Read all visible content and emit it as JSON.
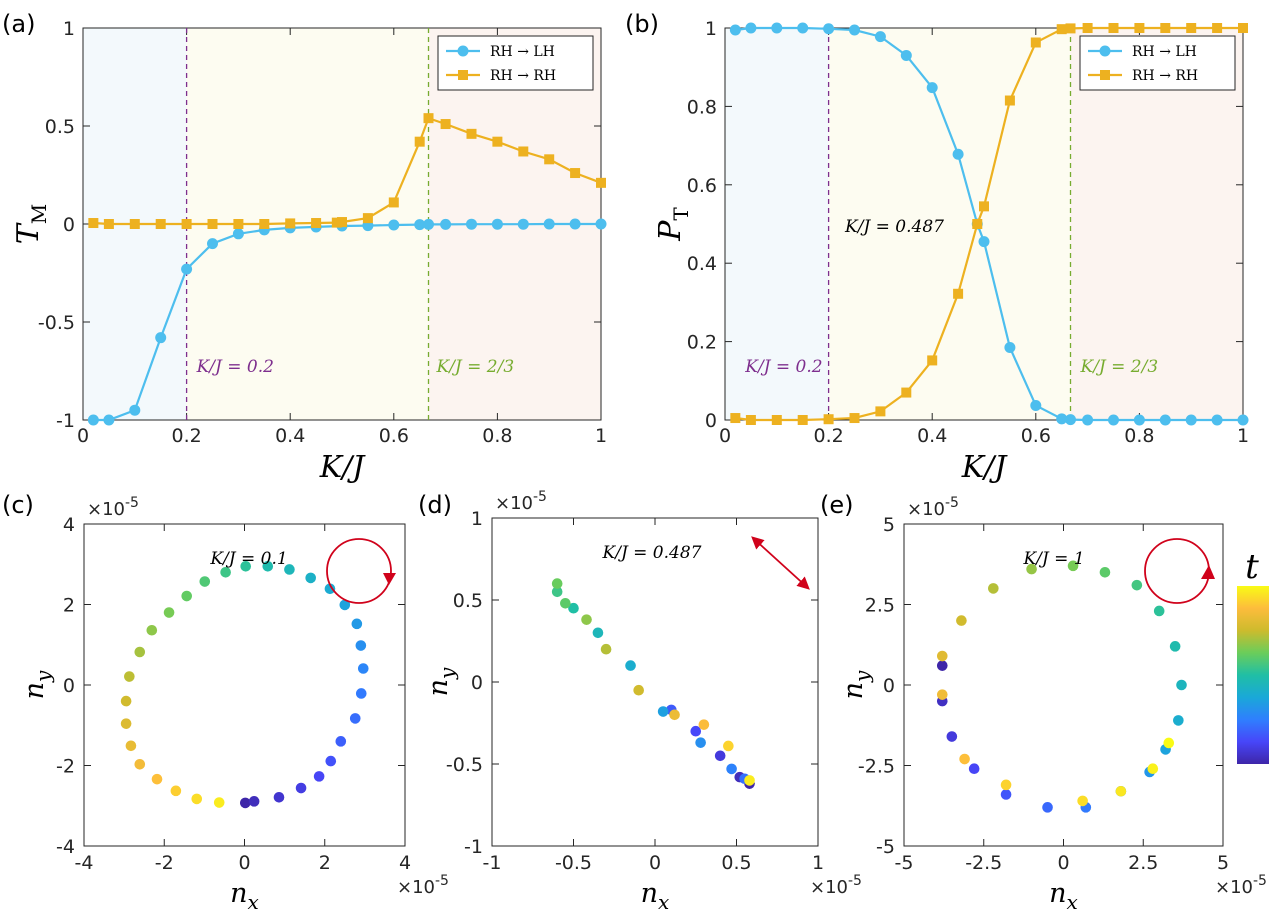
{
  "chart_data": [
    {
      "id": "a",
      "panel_label": "(a)",
      "type": "line",
      "xlabel": "K/J",
      "ylabel_main": "T",
      "ylabel_sub": "M",
      "xlim": [
        0,
        1
      ],
      "ylim": [
        -1,
        1
      ],
      "xticks": [
        0,
        0.2,
        0.4,
        0.6,
        0.8,
        1
      ],
      "xtick_labels": [
        "0",
        "0.2",
        "0.4",
        "0.6",
        "0.8",
        "1"
      ],
      "yticks": [
        -1,
        -0.5,
        0,
        0.5,
        1
      ],
      "ytick_labels": [
        "-1",
        "-0.5",
        "0",
        "0.5",
        "1"
      ],
      "regions": [
        {
          "from": 0,
          "to": 0.2,
          "color": "#f3f9fc"
        },
        {
          "from": 0.2,
          "to": 0.667,
          "color": "#fdfcf1"
        },
        {
          "from": 0.667,
          "to": 1,
          "color": "#fcf4f0"
        }
      ],
      "vlines": [
        {
          "x": 0.2,
          "color": "#7e2f8e",
          "label": "K/J = 0.2"
        },
        {
          "x": 0.667,
          "color": "#77ac30",
          "label": "K/J = 2/3"
        }
      ],
      "legend": {
        "position": "top-right",
        "entries": [
          "RH → LH",
          "RH → RH"
        ]
      },
      "series": [
        {
          "name": "RH → LH",
          "color": "#4dbeee",
          "marker": "circle",
          "x": [
            0.02,
            0.05,
            0.1,
            0.15,
            0.2,
            0.25,
            0.3,
            0.35,
            0.4,
            0.45,
            0.5,
            0.55,
            0.6,
            0.65,
            0.667,
            0.7,
            0.75,
            0.8,
            0.85,
            0.9,
            0.95,
            1.0
          ],
          "y": [
            -1,
            -1,
            -0.95,
            -0.58,
            -0.23,
            -0.1,
            -0.05,
            -0.03,
            -0.02,
            -0.015,
            -0.01,
            -0.008,
            -0.005,
            -0.003,
            -0.002,
            -0.002,
            -0.001,
            -0.001,
            -0.001,
            0,
            0,
            0
          ]
        },
        {
          "name": "RH → RH",
          "color": "#edb120",
          "marker": "square",
          "x": [
            0.02,
            0.05,
            0.1,
            0.15,
            0.2,
            0.25,
            0.3,
            0.35,
            0.4,
            0.45,
            0.49,
            0.5,
            0.55,
            0.6,
            0.65,
            0.667,
            0.7,
            0.75,
            0.8,
            0.85,
            0.9,
            0.95,
            1.0
          ],
          "y": [
            0.005,
            0,
            0,
            0,
            0,
            0,
            0,
            0,
            0.003,
            0.005,
            0.007,
            0.01,
            0.03,
            0.11,
            0.42,
            0.54,
            0.51,
            0.46,
            0.42,
            0.37,
            0.33,
            0.26,
            0.21
          ]
        }
      ]
    },
    {
      "id": "b",
      "panel_label": "(b)",
      "type": "line",
      "xlabel": "K/J",
      "ylabel_main": "P",
      "ylabel_sub": "T",
      "xlim": [
        0,
        1
      ],
      "ylim": [
        0,
        1
      ],
      "xticks": [
        0,
        0.2,
        0.4,
        0.6,
        0.8,
        1
      ],
      "xtick_labels": [
        "0",
        "0.2",
        "0.4",
        "0.6",
        "0.8",
        "1"
      ],
      "yticks": [
        0,
        0.2,
        0.4,
        0.6,
        0.8,
        1
      ],
      "ytick_labels": [
        "0",
        "0.2",
        "0.4",
        "0.6",
        "0.8",
        "1"
      ],
      "regions": [
        {
          "from": 0,
          "to": 0.2,
          "color": "#f3f9fc"
        },
        {
          "from": 0.2,
          "to": 0.667,
          "color": "#fdfcf1"
        },
        {
          "from": 0.667,
          "to": 1,
          "color": "#fcf4f0"
        }
      ],
      "vlines": [
        {
          "x": 0.2,
          "color": "#7e2f8e",
          "label": "K/J = 0.2"
        },
        {
          "x": 0.667,
          "color": "#77ac30",
          "label": "K/J = 2/3"
        }
      ],
      "annotation": "K/J = 0.487",
      "legend": {
        "position": "top-right",
        "entries": [
          "RH → LH",
          "RH → RH"
        ]
      },
      "series": [
        {
          "name": "RH → LH",
          "color": "#4dbeee",
          "marker": "circle",
          "x": [
            0.02,
            0.05,
            0.1,
            0.15,
            0.2,
            0.25,
            0.3,
            0.35,
            0.4,
            0.45,
            0.487,
            0.5,
            0.55,
            0.6,
            0.65,
            0.667,
            0.7,
            0.75,
            0.8,
            0.85,
            0.9,
            0.95,
            1.0
          ],
          "y": [
            0.995,
            1,
            1,
            1,
            0.998,
            0.995,
            0.978,
            0.93,
            0.848,
            0.678,
            0.5,
            0.455,
            0.185,
            0.037,
            0.003,
            0.001,
            0,
            0,
            0,
            0,
            0,
            0,
            0
          ]
        },
        {
          "name": "RH → RH",
          "color": "#edb120",
          "marker": "square",
          "x": [
            0.02,
            0.05,
            0.1,
            0.15,
            0.2,
            0.25,
            0.3,
            0.35,
            0.4,
            0.45,
            0.487,
            0.5,
            0.55,
            0.6,
            0.65,
            0.667,
            0.7,
            0.75,
            0.8,
            0.85,
            0.9,
            0.95,
            1.0
          ],
          "y": [
            0.005,
            0,
            0,
            0,
            0.002,
            0.005,
            0.022,
            0.07,
            0.152,
            0.322,
            0.5,
            0.545,
            0.815,
            0.963,
            0.997,
            0.999,
            1,
            1,
            1,
            1,
            1,
            1,
            1
          ]
        }
      ]
    },
    {
      "id": "c",
      "panel_label": "(c)",
      "type": "scatter",
      "xlabel": "n",
      "xlabel_sub": "x",
      "ylabel": "n",
      "ylabel_sub": "y",
      "exponent_label": "×10",
      "exponent_power": "-5",
      "title": "K/J = 0.1",
      "polarization": "circular, clockwise",
      "xlim": [
        -4,
        4
      ],
      "ylim": [
        -4,
        4
      ],
      "xticks": [
        -4,
        -2,
        0,
        2,
        4
      ],
      "xtick_labels": [
        "-4",
        "-2",
        "0",
        "2",
        "4"
      ],
      "yticks": [
        -4,
        -2,
        0,
        2,
        4
      ],
      "ytick_labels": [
        "-4",
        "-2",
        "0",
        "2",
        "4"
      ],
      "colorbar_label": "t",
      "points": {
        "x": [
          0.02,
          0.24,
          0.86,
          1.41,
          1.86,
          2.15,
          2.4,
          2.76,
          2.91,
          2.96,
          2.9,
          2.8,
          2.5,
          2.13,
          1.65,
          1.12,
          0.58,
          0.03,
          -0.47,
          -0.99,
          -1.44,
          -1.88,
          -2.31,
          -2.61,
          -2.87,
          -2.95,
          -2.95,
          -2.83,
          -2.61,
          -2.18,
          -1.71,
          -1.19,
          -0.63
        ],
        "y": [
          -2.93,
          -2.89,
          -2.79,
          -2.56,
          -2.27,
          -1.89,
          -1.4,
          -0.83,
          -0.21,
          0.41,
          0.98,
          1.52,
          1.99,
          2.39,
          2.66,
          2.87,
          2.95,
          2.95,
          2.8,
          2.57,
          2.21,
          1.8,
          1.36,
          0.82,
          0.21,
          -0.4,
          -0.96,
          -1.51,
          -1.97,
          -2.34,
          -2.63,
          -2.83,
          -2.92
        ],
        "t": [
          0.0,
          0.03,
          0.06,
          0.09,
          0.12,
          0.15,
          0.18,
          0.21,
          0.24,
          0.27,
          0.3,
          0.33,
          0.36,
          0.39,
          0.42,
          0.45,
          0.48,
          0.52,
          0.55,
          0.58,
          0.61,
          0.64,
          0.67,
          0.7,
          0.73,
          0.76,
          0.79,
          0.82,
          0.85,
          0.88,
          0.91,
          0.94,
          0.97
        ]
      }
    },
    {
      "id": "d",
      "panel_label": "(d)",
      "type": "scatter",
      "xlabel": "n",
      "xlabel_sub": "x",
      "ylabel": "n",
      "ylabel_sub": "y",
      "exponent_label": "×10",
      "exponent_power": "-5",
      "title": "K/J = 0.487",
      "polarization": "linear",
      "xlim": [
        -1,
        1
      ],
      "ylim": [
        -1,
        1
      ],
      "xticks": [
        -1,
        -0.5,
        0,
        0.5,
        1
      ],
      "xtick_labels": [
        "-1",
        "-0.5",
        "0",
        "0.5",
        "1"
      ],
      "yticks": [
        -1,
        -0.5,
        0,
        0.5,
        1
      ],
      "ytick_labels": [
        "-1",
        "-0.5",
        "0",
        "0.5",
        "1"
      ],
      "points": {
        "x": [
          0.58,
          0.52,
          0.4,
          0.25,
          0.1,
          0.55,
          0.47,
          0.28,
          0.05,
          -0.15,
          -0.35,
          -0.5,
          -0.6,
          -0.55,
          -0.6,
          -0.42,
          -0.3,
          -0.1,
          0.12,
          0.3,
          0.45,
          0.58
        ],
        "y": [
          -0.62,
          -0.58,
          -0.45,
          -0.3,
          -0.17,
          -0.59,
          -0.53,
          -0.37,
          -0.18,
          0.1,
          0.3,
          0.45,
          0.55,
          0.48,
          0.6,
          0.38,
          0.2,
          -0.05,
          -0.2,
          -0.26,
          -0.39,
          -0.6
        ],
        "t": [
          0.0,
          0.03,
          0.08,
          0.13,
          0.17,
          0.22,
          0.26,
          0.3,
          0.35,
          0.4,
          0.45,
          0.5,
          0.55,
          0.6,
          0.62,
          0.67,
          0.72,
          0.76,
          0.83,
          0.87,
          0.92,
          0.97
        ]
      }
    },
    {
      "id": "e",
      "panel_label": "(e)",
      "type": "scatter",
      "xlabel": "n",
      "xlabel_sub": "x",
      "ylabel": "n",
      "ylabel_sub": "y",
      "exponent_label": "×10",
      "exponent_power": "-5",
      "title": "K/J = 1",
      "polarization": "circular, counterclockwise",
      "xlim": [
        -5,
        5
      ],
      "ylim": [
        -5,
        5
      ],
      "xticks": [
        -5,
        -2.5,
        0,
        2.5,
        5
      ],
      "xtick_labels": [
        "-5",
        "-2.5",
        "0",
        "2.5",
        "5"
      ],
      "yticks": [
        -5,
        -2.5,
        0,
        2.5,
        5
      ],
      "ytick_labels": [
        "-5",
        "-2.5",
        "0",
        "2.5",
        "5"
      ],
      "points": {
        "x": [
          -3.8,
          -3.8,
          -3.5,
          -2.8,
          -1.8,
          -0.5,
          0.7,
          1.8,
          2.7,
          3.2,
          3.6,
          3.7,
          3.5,
          3.0,
          2.3,
          1.3,
          0.3,
          -1.0,
          -2.2,
          -3.2,
          -3.8,
          -3.8,
          -3.1,
          -1.8,
          0.6,
          1.8,
          2.8,
          3.3
        ],
        "y": [
          0.6,
          -0.5,
          -1.6,
          -2.6,
          -3.4,
          -3.8,
          -3.8,
          -3.3,
          -2.7,
          -2.0,
          -1.1,
          0.0,
          1.2,
          2.3,
          3.1,
          3.5,
          3.7,
          3.6,
          3.0,
          2.0,
          0.9,
          -0.3,
          -2.3,
          -3.1,
          -3.6,
          -3.3,
          -2.6,
          -1.8
        ],
        "t": [
          0.0,
          0.04,
          0.08,
          0.12,
          0.16,
          0.2,
          0.24,
          0.28,
          0.32,
          0.36,
          0.4,
          0.44,
          0.48,
          0.52,
          0.56,
          0.6,
          0.64,
          0.68,
          0.72,
          0.76,
          0.8,
          0.84,
          0.88,
          0.92,
          0.94,
          0.96,
          0.98,
          1.0
        ]
      }
    }
  ]
}
